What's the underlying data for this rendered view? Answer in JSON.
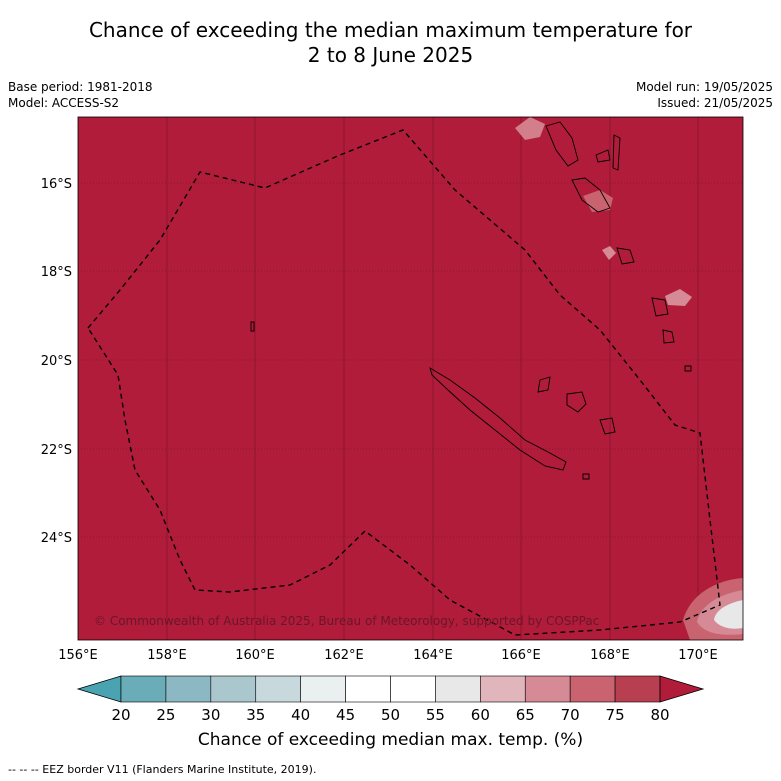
{
  "title": {
    "line1": "Chance of exceeding the median maximum temperature for",
    "line2": "2 to 8 June 2025"
  },
  "meta": {
    "base_period": "Base period: 1981-2018",
    "model": "Model: ACCESS-S2",
    "model_run": "Model run: 19/05/2025",
    "issued": "Issued: 21/05/2025"
  },
  "map": {
    "background_color": "#b01c3a",
    "copyright": "© Commonwealth of Australia 2025, Bureau of Meteorology, supported by COSPPac",
    "lat_labels": [
      "16°S",
      "18°S",
      "20°S",
      "22°S",
      "24°S"
    ],
    "lon_labels": [
      "156°E",
      "158°E",
      "160°E",
      "162°E",
      "164°E",
      "166°E",
      "168°E",
      "170°E"
    ]
  },
  "colorbar": {
    "ticks": [
      "20",
      "25",
      "30",
      "35",
      "40",
      "45",
      "50",
      "55",
      "60",
      "65",
      "70",
      "75",
      "80"
    ],
    "colors": [
      "#6aacb8",
      "#8bb8c2",
      "#a9c7cc",
      "#c8d9dd",
      "#eaeff0",
      "#ffffff",
      "#ffffff",
      "#e8e8e8",
      "#e0b6bc",
      "#d68a95",
      "#c8636f",
      "#b83f50"
    ],
    "under_color": "#4aa3b0",
    "over_color": "#b01c3a",
    "label": "Chance of exceeding median max. temp. (%)"
  },
  "footer": {
    "legend": "--  --  -- EEZ border V11 (Flanders Marine Institute, 2019)."
  }
}
